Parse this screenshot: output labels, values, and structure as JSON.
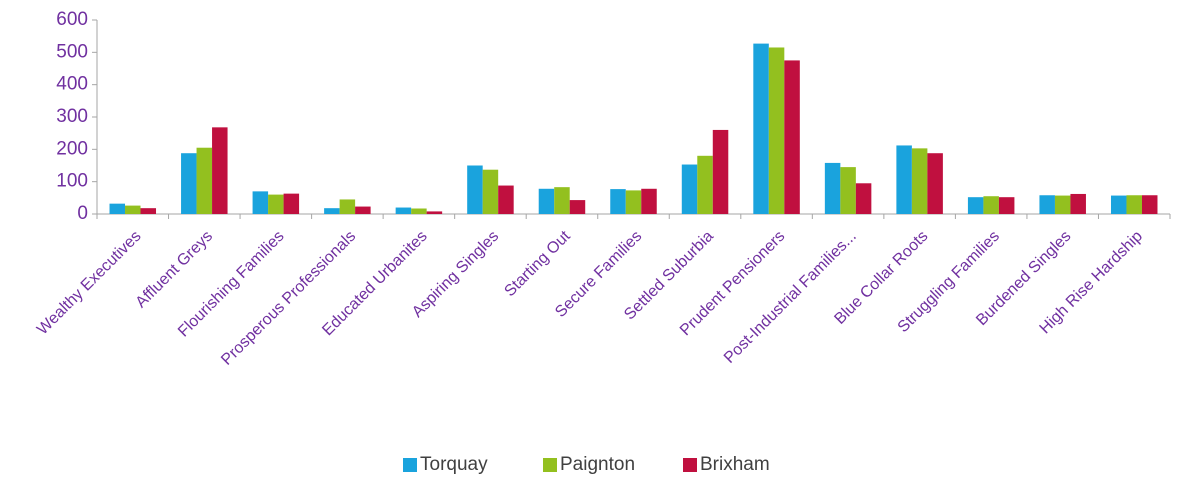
{
  "chart_data": {
    "type": "bar",
    "categories": [
      "Wealthy Executives",
      "Affluent Greys",
      "Flourishing Families",
      "Prosperous Professionals",
      "Educated Urbanites",
      "Aspiring Singles",
      "Starting Out",
      "Secure Families",
      "Settled Suburbia",
      "Prudent Pensioners",
      "Post-Industrial Families...",
      "Blue Collar Roots",
      "Struggling Families",
      "Burdened Singles",
      "High Rise Hardship"
    ],
    "series": [
      {
        "name": "Torquay",
        "color": "#1aa3dd",
        "values": [
          32,
          188,
          70,
          18,
          20,
          150,
          78,
          77,
          153,
          527,
          158,
          212,
          52,
          58,
          57
        ]
      },
      {
        "name": "Paignton",
        "color": "#93c01f",
        "values": [
          26,
          205,
          60,
          45,
          17,
          137,
          83,
          73,
          180,
          515,
          145,
          203,
          55,
          57,
          58
        ]
      },
      {
        "name": "Brixham",
        "color": "#c0103f",
        "values": [
          18,
          268,
          63,
          23,
          8,
          88,
          43,
          78,
          260,
          475,
          95,
          188,
          52,
          62,
          58
        ]
      }
    ],
    "ylim": [
      0,
      600
    ],
    "yticks": [
      0,
      100,
      200,
      300,
      400,
      500,
      600
    ],
    "grid": false,
    "legend": "bottom"
  }
}
